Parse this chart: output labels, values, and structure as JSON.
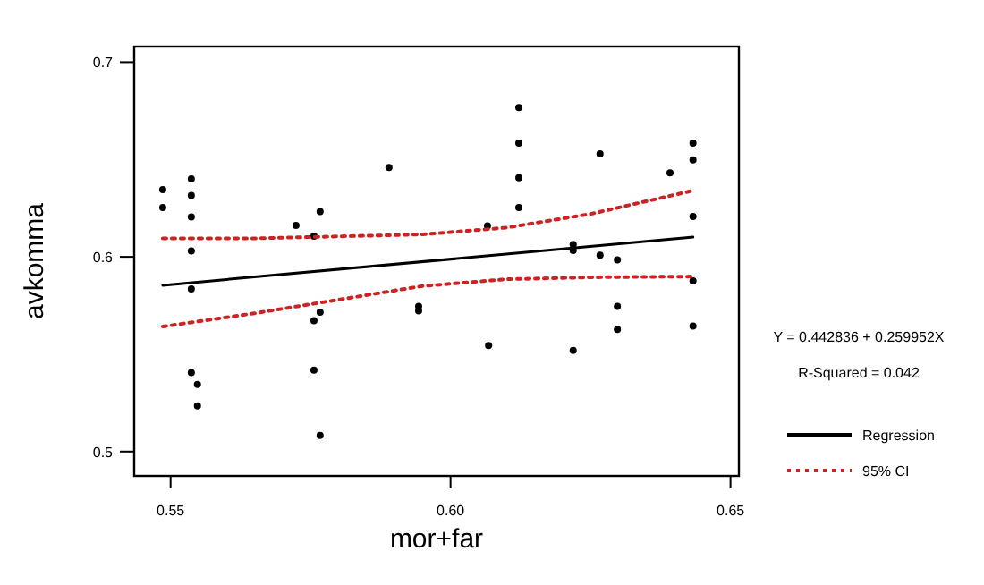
{
  "chart_data": {
    "type": "scatter",
    "xlabel": "mor+far",
    "ylabel": "avkomma",
    "xlim": [
      0.5435,
      0.6515
    ],
    "ylim": [
      0.4875,
      0.708
    ],
    "xticks": [
      {
        "value": 0.55,
        "label": "0.55"
      },
      {
        "value": 0.6,
        "label": "0.60"
      },
      {
        "value": 0.65,
        "label": "0.65"
      }
    ],
    "yticks": [
      {
        "value": 0.5,
        "label": "0.5"
      },
      {
        "value": 0.6,
        "label": "0.6"
      },
      {
        "value": 0.7,
        "label": "0.7"
      }
    ],
    "grid": false,
    "legend": "right",
    "annotations": [
      "Y = 0.442836 + 0.259952X",
      "R-Squared = 0.042"
    ],
    "series": [
      {
        "type": "scatter",
        "color": "#000000",
        "marker": "circle",
        "x": [
          0.5486,
          0.5486,
          0.5537,
          0.5537,
          0.5537,
          0.5537,
          0.5537,
          0.5537,
          0.5548,
          0.5548,
          0.5724,
          0.5767,
          0.5756,
          0.5756,
          0.5767,
          0.5756,
          0.5767,
          0.589,
          0.5943,
          0.5943,
          0.6122,
          0.6122,
          0.6122,
          0.6122,
          0.6066,
          0.6068,
          0.6219,
          0.6219,
          0.6219,
          0.6267,
          0.6267,
          0.6298,
          0.6298,
          0.6298,
          0.6392,
          0.6433,
          0.6433,
          0.6433,
          0.6433,
          0.6433
        ],
        "values": [
          0.6345,
          0.6253,
          0.64,
          0.6315,
          0.6205,
          0.603,
          0.5835,
          0.5406,
          0.5345,
          0.5235,
          0.6161,
          0.6232,
          0.6106,
          0.5672,
          0.5716,
          0.5418,
          0.5083,
          0.6459,
          0.5745,
          0.5722,
          0.6767,
          0.6584,
          0.6406,
          0.6253,
          0.6159,
          0.5544,
          0.6064,
          0.6033,
          0.5519,
          0.6529,
          0.6009,
          0.5984,
          0.5746,
          0.5627,
          0.6431,
          0.6584,
          0.6498,
          0.6207,
          0.5877,
          0.5645
        ]
      },
      {
        "type": "line",
        "name": "Regression",
        "color": "#000000",
        "line_style": "solid",
        "x": [
          0.5486,
          0.6433
        ],
        "values": [
          0.5854,
          0.6101
        ]
      },
      {
        "type": "line",
        "name": "95% CI",
        "color": "#cc2222",
        "line_style": "dotted",
        "x": [
          0.5486,
          0.565,
          0.58,
          0.595,
          0.61,
          0.625,
          0.6433
        ],
        "values": [
          0.6095,
          0.6095,
          0.6105,
          0.6115,
          0.615,
          0.622,
          0.634
        ]
      },
      {
        "type": "line",
        "color": "#cc2222",
        "line_style": "dotted",
        "x": [
          0.5486,
          0.565,
          0.58,
          0.595,
          0.61,
          0.625,
          0.6433
        ],
        "values": [
          0.5642,
          0.571,
          0.578,
          0.585,
          0.5885,
          0.5895,
          0.5899
        ]
      }
    ]
  }
}
